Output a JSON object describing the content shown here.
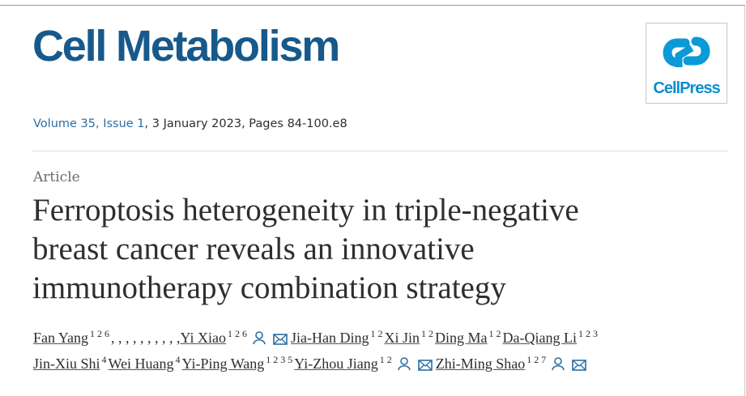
{
  "journal": {
    "name": "Cell Metabolism",
    "publisher": "CellPress"
  },
  "citation": {
    "source": "Volume 35, Issue 1",
    "details": ", 3 January 2023, Pages 84-100.e8"
  },
  "article_type": "Article",
  "title_lines": [
    "Ferroptosis heterogeneity in triple-negative",
    "breast cancer reveals an innovative",
    "immunotherapy combination strategy"
  ],
  "author_lines": [
    [
      {
        "name": "Fan Yang",
        "sup": "1 2 6",
        "after": ", , , , , , , , , ,"
      },
      {
        "name": "Yi Xiao",
        "sup": "1 2 6"
      },
      {
        "name": "Jia-Han Ding",
        "sup": "1 2"
      },
      {
        "name": "Xi Jin",
        "sup": "1 2"
      },
      {
        "name": "Ding Ma",
        "sup": "1 2"
      },
      {
        "name": "Da-Qiang Li",
        "sup": "1 2 3"
      }
    ],
    [
      {
        "name": "Jin-Xiu Shi",
        "sup": "4"
      },
      {
        "name": "Wei Huang",
        "sup": "4"
      },
      {
        "name": "Yi-Ping Wang",
        "sup": "1 2 3 5"
      },
      {
        "name": "Yi-Zhou Jiang",
        "sup": "1 2"
      },
      {
        "name": "Zhi-Ming Shao",
        "sup": "1 2 7"
      }
    ]
  ]
}
